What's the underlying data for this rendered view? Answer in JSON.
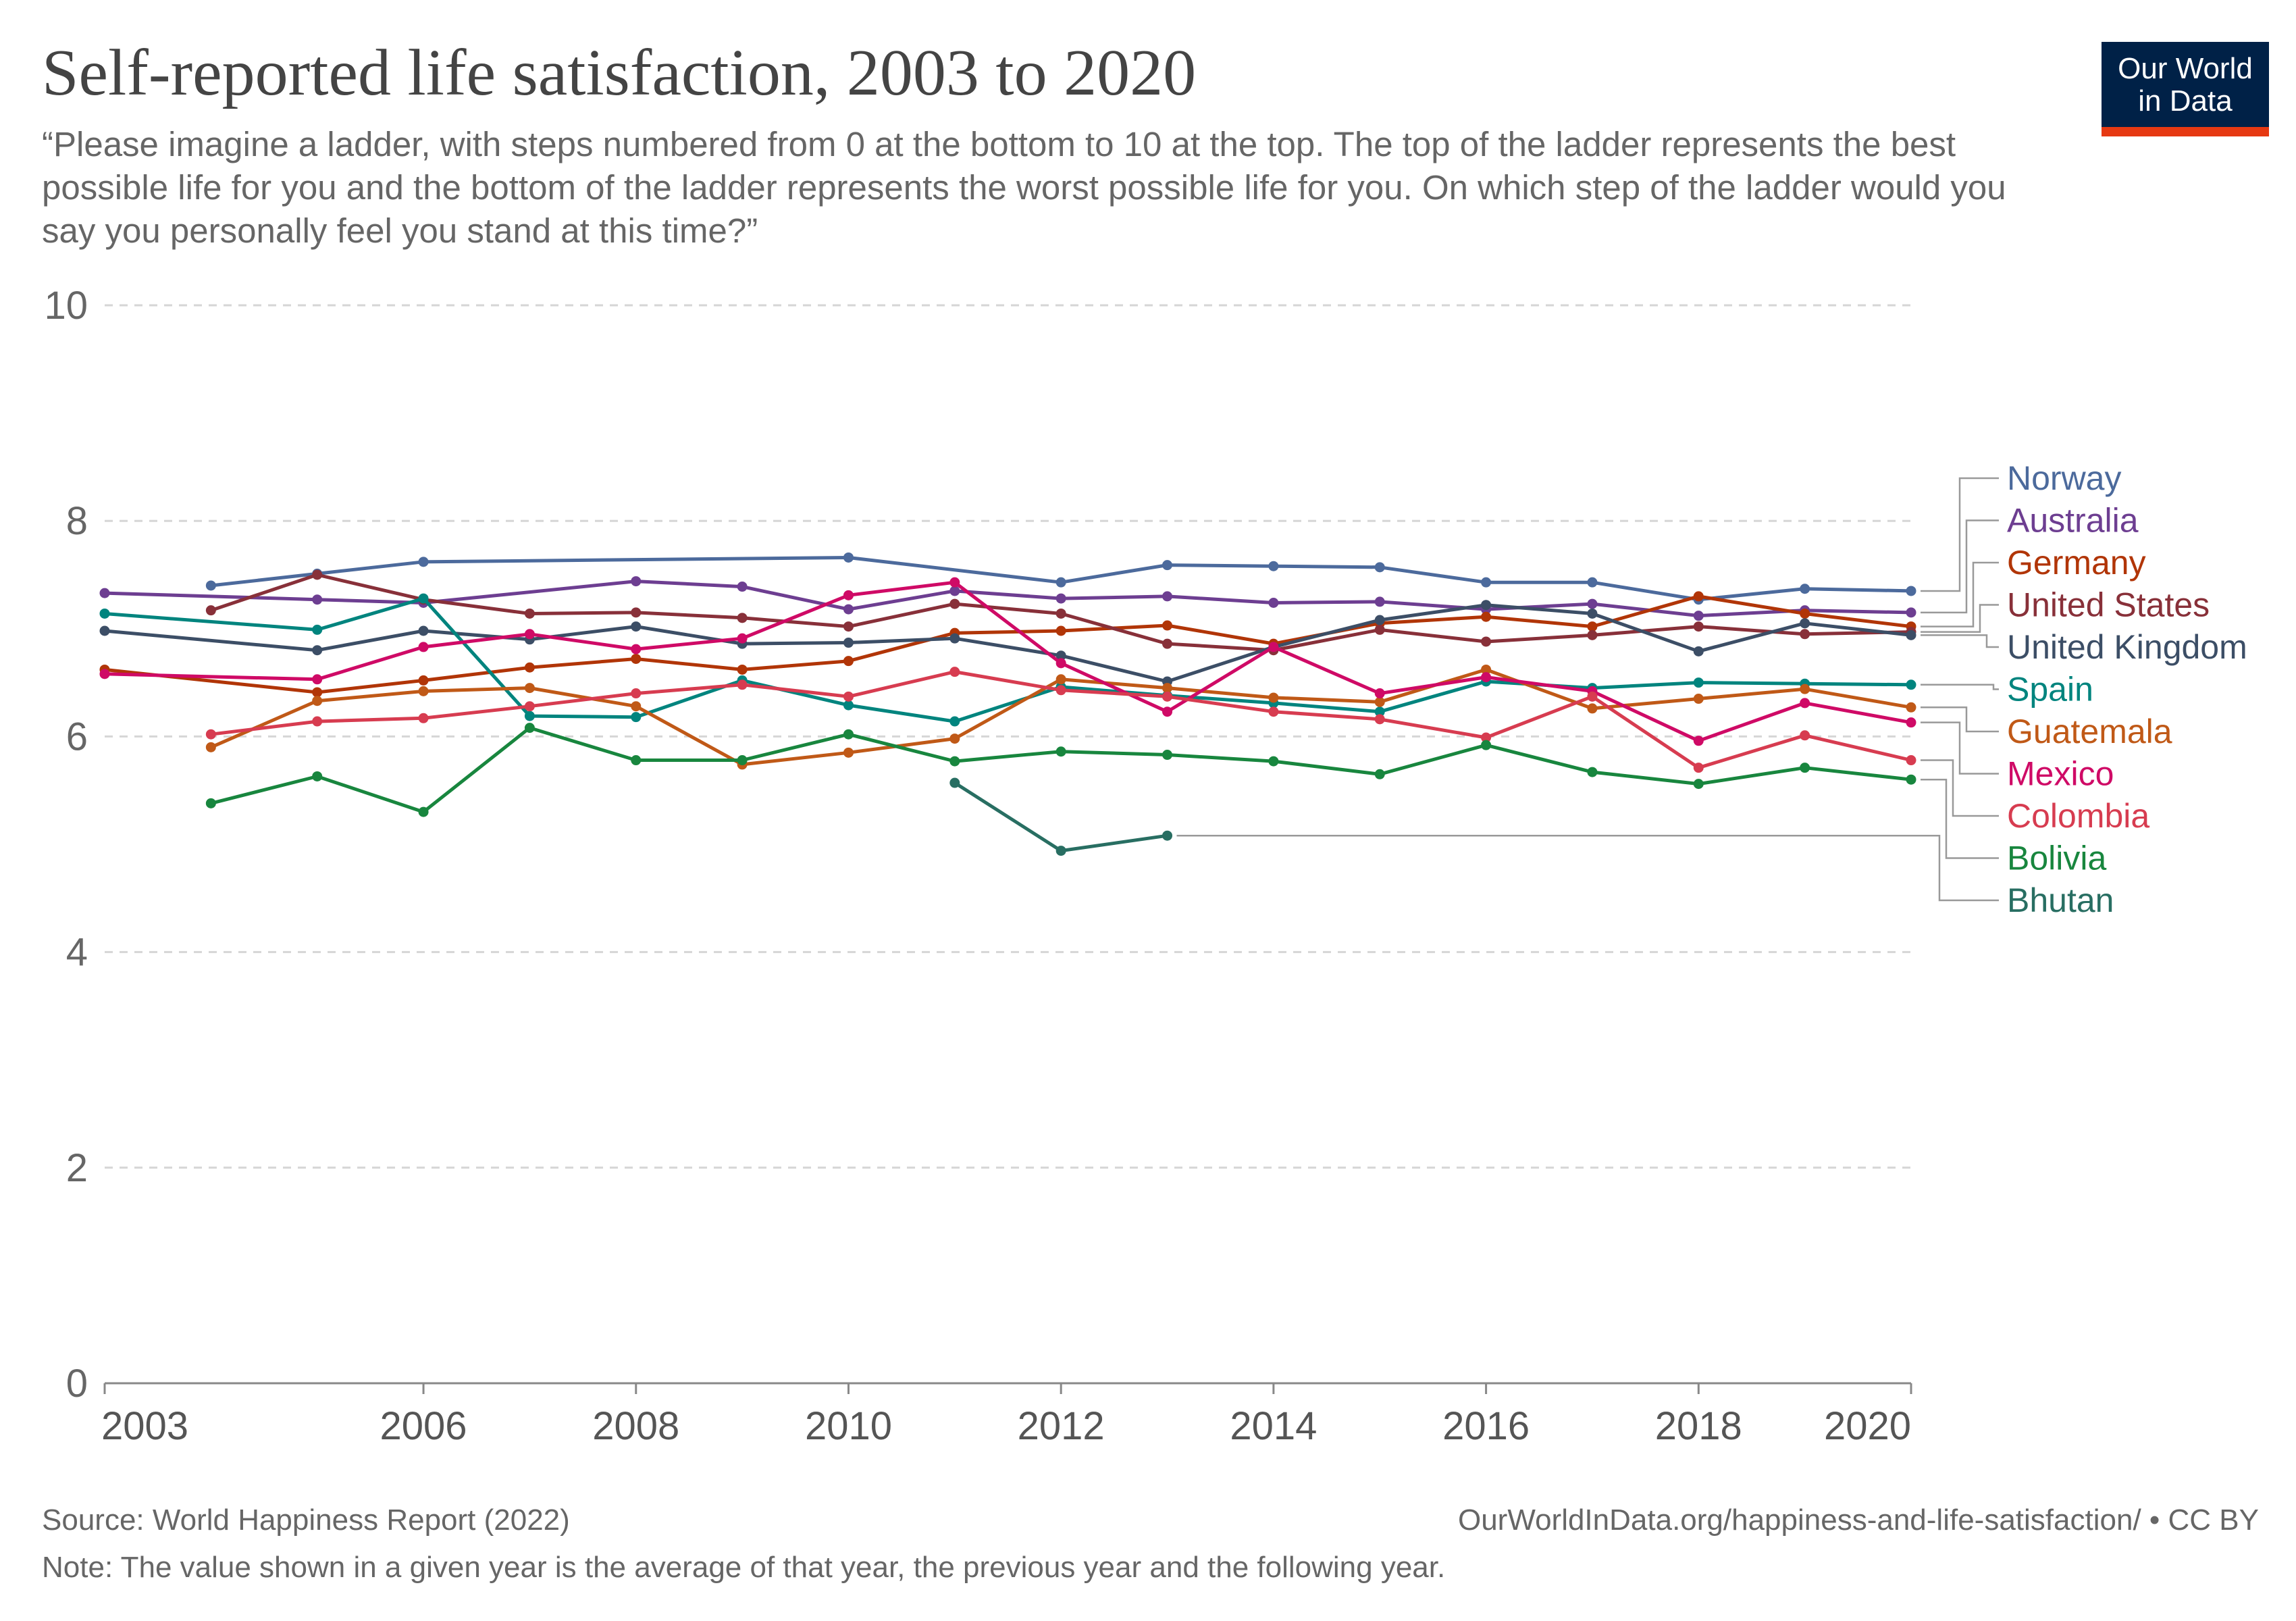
{
  "header": {
    "title": "Self-reported life satisfaction, 2003 to 2020",
    "subtitle": "“Please imagine a ladder, with steps numbered from 0 at the bottom to 10 at the top. The top of the ladder represents the best possible life for you and the bottom of the ladder represents the worst possible life for you. On which step of the ladder would you say you personally feel you stand at this time?”"
  },
  "logo": {
    "line1": "Our World",
    "line2": "in Data",
    "colors": {
      "background": "#002147",
      "accent": "#e63912"
    }
  },
  "footer": {
    "source": "Source: World Happiness Report (2022)",
    "url": "OurWorldInData.org/happiness-and-life-satisfaction/ • CC BY",
    "note": "Note: The value shown in a given year is the average of that year, the previous year and the following year."
  },
  "chart_data": {
    "type": "line",
    "ylim": [
      0,
      10
    ],
    "xlim": [
      2003,
      2020
    ],
    "y_ticks": [
      0,
      2,
      4,
      6,
      8,
      10
    ],
    "x_ticks": [
      2003,
      2006,
      2008,
      2010,
      2012,
      2014,
      2016,
      2018,
      2020
    ],
    "grid": "horizontal dashed",
    "legend": "right, labels at line ends",
    "series": [
      {
        "name": "Norway",
        "color": "#4c6a9c",
        "points": [
          [
            2004,
            7.4
          ],
          [
            2005,
            7.51
          ],
          [
            2006,
            7.62
          ],
          [
            2010,
            7.66
          ],
          [
            2012,
            7.43
          ],
          [
            2013,
            7.59
          ],
          [
            2014,
            7.58
          ],
          [
            2015,
            7.57
          ],
          [
            2016,
            7.43
          ],
          [
            2017,
            7.43
          ],
          [
            2018,
            7.27
          ],
          [
            2019,
            7.37
          ],
          [
            2020,
            7.35
          ]
        ]
      },
      {
        "name": "Australia",
        "color": "#6d3e91",
        "points": [
          [
            2003,
            7.33
          ],
          [
            2005,
            7.27
          ],
          [
            2006,
            7.24
          ],
          [
            2008,
            7.44
          ],
          [
            2009,
            7.39
          ],
          [
            2010,
            7.18
          ],
          [
            2011,
            7.35
          ],
          [
            2012,
            7.28
          ],
          [
            2013,
            7.3
          ],
          [
            2014,
            7.24
          ],
          [
            2015,
            7.25
          ],
          [
            2016,
            7.18
          ],
          [
            2017,
            7.23
          ],
          [
            2018,
            7.12
          ],
          [
            2019,
            7.17
          ],
          [
            2020,
            7.15
          ]
        ]
      },
      {
        "name": "Germany",
        "color": "#b13507",
        "points": [
          [
            2003,
            6.62
          ],
          [
            2005,
            6.41
          ],
          [
            2006,
            6.52
          ],
          [
            2007,
            6.64
          ],
          [
            2008,
            6.72
          ],
          [
            2009,
            6.62
          ],
          [
            2010,
            6.7
          ],
          [
            2011,
            6.96
          ],
          [
            2012,
            6.98
          ],
          [
            2013,
            7.03
          ],
          [
            2014,
            6.86
          ],
          [
            2015,
            7.05
          ],
          [
            2016,
            7.11
          ],
          [
            2017,
            7.02
          ],
          [
            2018,
            7.3
          ],
          [
            2019,
            7.14
          ],
          [
            2020,
            7.02
          ]
        ]
      },
      {
        "name": "United States",
        "color": "#883039",
        "points": [
          [
            2004,
            7.17
          ],
          [
            2005,
            7.5
          ],
          [
            2006,
            7.27
          ],
          [
            2007,
            7.14
          ],
          [
            2008,
            7.15
          ],
          [
            2009,
            7.1
          ],
          [
            2010,
            7.02
          ],
          [
            2011,
            7.23
          ],
          [
            2012,
            7.14
          ],
          [
            2013,
            6.86
          ],
          [
            2014,
            6.8
          ],
          [
            2015,
            6.99
          ],
          [
            2016,
            6.88
          ],
          [
            2017,
            6.94
          ],
          [
            2018,
            7.02
          ],
          [
            2019,
            6.95
          ],
          [
            2020,
            6.97
          ]
        ]
      },
      {
        "name": "United Kingdom",
        "color": "#3c4e66",
        "points": [
          [
            2003,
            6.98
          ],
          [
            2005,
            6.8
          ],
          [
            2006,
            6.98
          ],
          [
            2007,
            6.9
          ],
          [
            2008,
            7.02
          ],
          [
            2009,
            6.86
          ],
          [
            2010,
            6.87
          ],
          [
            2011,
            6.91
          ],
          [
            2012,
            6.75
          ],
          [
            2013,
            6.51
          ],
          [
            2014,
            6.83
          ],
          [
            2015,
            7.08
          ],
          [
            2016,
            7.22
          ],
          [
            2017,
            7.14
          ],
          [
            2018,
            6.79
          ],
          [
            2019,
            7.05
          ],
          [
            2020,
            6.94
          ]
        ]
      },
      {
        "name": "Spain",
        "color": "#00847e",
        "points": [
          [
            2003,
            7.14
          ],
          [
            2005,
            6.99
          ],
          [
            2006,
            7.28
          ],
          [
            2007,
            6.19
          ],
          [
            2008,
            6.18
          ],
          [
            2009,
            6.52
          ],
          [
            2010,
            6.29
          ],
          [
            2011,
            6.14
          ],
          [
            2012,
            6.46
          ],
          [
            2013,
            6.38
          ],
          [
            2014,
            6.31
          ],
          [
            2015,
            6.23
          ],
          [
            2016,
            6.51
          ],
          [
            2017,
            6.45
          ],
          [
            2018,
            6.5
          ],
          [
            2019,
            6.49
          ],
          [
            2020,
            6.48
          ]
        ]
      },
      {
        "name": "Guatemala",
        "color": "#c05917",
        "points": [
          [
            2004,
            5.9
          ],
          [
            2005,
            6.33
          ],
          [
            2006,
            6.42
          ],
          [
            2007,
            6.45
          ],
          [
            2008,
            6.28
          ],
          [
            2009,
            5.74
          ],
          [
            2010,
            5.85
          ],
          [
            2011,
            5.98
          ],
          [
            2012,
            6.53
          ],
          [
            2013,
            6.45
          ],
          [
            2014,
            6.36
          ],
          [
            2015,
            6.32
          ],
          [
            2016,
            6.62
          ],
          [
            2017,
            6.26
          ],
          [
            2018,
            6.35
          ],
          [
            2019,
            6.44
          ],
          [
            2020,
            6.27
          ]
        ]
      },
      {
        "name": "Mexico",
        "color": "#cf0a66",
        "points": [
          [
            2003,
            6.58
          ],
          [
            2005,
            6.53
          ],
          [
            2006,
            6.83
          ],
          [
            2007,
            6.95
          ],
          [
            2008,
            6.81
          ],
          [
            2009,
            6.91
          ],
          [
            2010,
            7.31
          ],
          [
            2011,
            7.43
          ],
          [
            2012,
            6.68
          ],
          [
            2013,
            6.23
          ],
          [
            2014,
            6.83
          ],
          [
            2015,
            6.4
          ],
          [
            2016,
            6.55
          ],
          [
            2017,
            6.42
          ],
          [
            2018,
            5.96
          ],
          [
            2019,
            6.31
          ],
          [
            2020,
            6.13
          ]
        ]
      },
      {
        "name": "Colombia",
        "color": "#d73c50",
        "points": [
          [
            2004,
            6.02
          ],
          [
            2005,
            6.14
          ],
          [
            2006,
            6.17
          ],
          [
            2007,
            6.28
          ],
          [
            2008,
            6.4
          ],
          [
            2009,
            6.48
          ],
          [
            2010,
            6.37
          ],
          [
            2011,
            6.6
          ],
          [
            2012,
            6.43
          ],
          [
            2013,
            6.37
          ],
          [
            2014,
            6.23
          ],
          [
            2015,
            6.16
          ],
          [
            2016,
            5.99
          ],
          [
            2017,
            6.37
          ],
          [
            2018,
            5.71
          ],
          [
            2019,
            6.01
          ],
          [
            2020,
            5.78
          ]
        ]
      },
      {
        "name": "Bolivia",
        "color": "#18863e",
        "points": [
          [
            2004,
            5.38
          ],
          [
            2005,
            5.63
          ],
          [
            2006,
            5.3
          ],
          [
            2007,
            6.08
          ],
          [
            2008,
            5.78
          ],
          [
            2009,
            5.78
          ],
          [
            2010,
            6.02
          ],
          [
            2011,
            5.77
          ],
          [
            2012,
            5.86
          ],
          [
            2013,
            5.83
          ],
          [
            2014,
            5.77
          ],
          [
            2015,
            5.65
          ],
          [
            2016,
            5.92
          ],
          [
            2017,
            5.67
          ],
          [
            2018,
            5.56
          ],
          [
            2019,
            5.71
          ],
          [
            2020,
            5.6
          ]
        ]
      },
      {
        "name": "Bhutan",
        "color": "#286e62",
        "points": [
          [
            2011,
            5.57
          ],
          [
            2012,
            4.94
          ],
          [
            2013,
            5.08
          ]
        ]
      }
    ]
  }
}
